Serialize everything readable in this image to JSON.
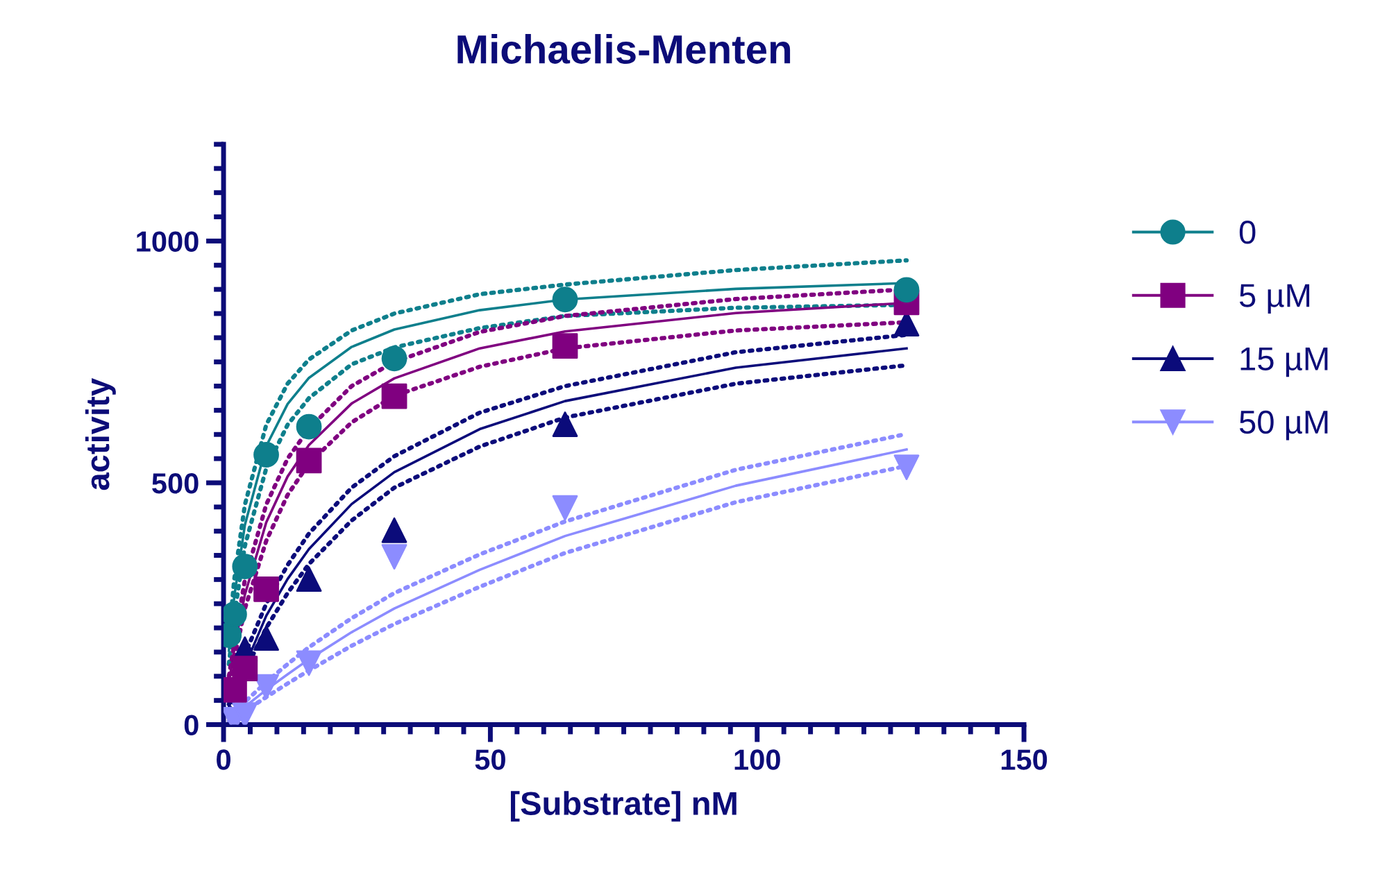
{
  "chart_data": {
    "type": "scatter",
    "title": "Michaelis-Menten",
    "xlabel": "[Substrate] nM",
    "ylabel": "activity",
    "xlim": [
      0,
      150
    ],
    "xticks": [
      0,
      50,
      100,
      150
    ],
    "ylim": [
      0,
      1200
    ],
    "yticks": [
      0,
      500,
      1000
    ],
    "grid": false,
    "legend": "right",
    "series": [
      {
        "name": "0",
        "marker": "circle",
        "color": "#0e7f8c",
        "x": [
          1,
          2,
          4,
          8,
          16,
          32,
          64,
          128
        ],
        "values": [
          185,
          228,
          327,
          558,
          616,
          757,
          879,
          899
        ]
      },
      {
        "name": "5 µM",
        "marker": "square",
        "color": "#800080",
        "x": [
          2,
          4,
          8,
          16,
          32,
          64,
          128
        ],
        "values": [
          72,
          116,
          280,
          546,
          679,
          783,
          873
        ]
      },
      {
        "name": "15 µM",
        "marker": "triangle",
        "color": "#0b0b7a",
        "x": [
          4,
          8,
          16,
          32,
          64,
          128
        ],
        "values": [
          156,
          179,
          301,
          402,
          621,
          829
        ]
      },
      {
        "name": "50 µM",
        "marker": "triangle_down",
        "color": "#8c8cff",
        "x": [
          2,
          4,
          8,
          16,
          32,
          64,
          128
        ],
        "values": [
          10,
          20,
          78,
          127,
          347,
          448,
          532
        ]
      },
      {
        "type": "line",
        "line_style": "solid",
        "color": "#0e7f8c",
        "x": [
          1,
          2,
          4,
          8,
          12,
          16,
          24,
          32,
          48,
          64,
          96,
          128
        ],
        "values": [
          153,
          264,
          413,
          576,
          663,
          717,
          781,
          817,
          857,
          879,
          901,
          913
        ]
      },
      {
        "type": "line",
        "line_style": "dotted",
        "color": "#0e7f8c",
        "x": [
          1,
          2,
          4,
          8,
          12,
          16,
          24,
          32,
          48,
          64,
          96,
          128
        ],
        "values": [
          180,
          300,
          455,
          620,
          705,
          755,
          815,
          850,
          890,
          910,
          940,
          960
        ]
      },
      {
        "type": "line",
        "line_style": "dotted",
        "color": "#0e7f8c",
        "x": [
          1,
          2,
          4,
          8,
          12,
          16,
          24,
          32,
          48,
          64,
          96,
          128
        ],
        "values": [
          125,
          225,
          370,
          530,
          620,
          675,
          745,
          780,
          820,
          845,
          862,
          868
        ]
      },
      {
        "type": "line",
        "line_style": "solid",
        "color": "#800080",
        "x": [
          1,
          2,
          4,
          8,
          12,
          16,
          24,
          32,
          48,
          64,
          96,
          128
        ],
        "values": [
          85,
          157,
          269,
          418,
          513,
          578,
          664,
          716,
          778,
          813,
          851,
          872
        ]
      },
      {
        "type": "line",
        "line_style": "dotted",
        "color": "#800080",
        "x": [
          1,
          4,
          8,
          12,
          16,
          24,
          32,
          48,
          64,
          96,
          128
        ],
        "values": [
          100,
          300,
          455,
          550,
          612,
          700,
          750,
          812,
          845,
          880,
          900
        ]
      },
      {
        "type": "line",
        "line_style": "dotted",
        "color": "#800080",
        "x": [
          1,
          2,
          4,
          8,
          12,
          16,
          24,
          32,
          48,
          64,
          96,
          128
        ],
        "values": [
          70,
          135,
          240,
          380,
          475,
          540,
          625,
          680,
          740,
          778,
          815,
          832
        ]
      },
      {
        "type": "line",
        "line_style": "solid",
        "color": "#0b0b7a",
        "x": [
          1,
          2,
          4,
          8,
          12,
          16,
          24,
          32,
          48,
          64,
          96,
          128
        ],
        "values": [
          36,
          69,
          null,
          225,
          301,
          363,
          456,
          522,
          611,
          669,
          738,
          778
        ]
      },
      {
        "type": "line",
        "line_style": "dotted",
        "color": "#0b0b7a",
        "x": [
          1,
          2,
          4,
          8,
          12,
          16,
          24,
          32,
          48,
          64,
          96,
          128
        ],
        "values": [
          42,
          80,
          145,
          250,
          330,
          395,
          490,
          555,
          645,
          700,
          770,
          806
        ]
      },
      {
        "type": "line",
        "line_style": "dotted",
        "color": "#0b0b7a",
        "x": [
          1,
          2,
          4,
          8,
          12,
          16,
          24,
          32,
          48,
          64,
          96,
          128
        ],
        "values": [
          30,
          null,
          110,
          200,
          272,
          332,
          422,
          490,
          575,
          635,
          705,
          743
        ]
      },
      {
        "type": "line",
        "line_style": "solid",
        "color": "#8c8cff",
        "x": [
          1,
          2,
          4,
          8,
          12,
          16,
          24,
          32,
          48,
          64,
          96,
          128
        ],
        "values": [
          10,
          19,
          37,
          72,
          104,
          135,
          191,
          240,
          320,
          390,
          494,
          569
        ]
      },
      {
        "type": "line",
        "line_style": "dotted",
        "color": "#8c8cff",
        "x": [
          1,
          2,
          4,
          8,
          12,
          16,
          24,
          32,
          48,
          64,
          96,
          128
        ],
        "values": [
          13,
          25,
          47,
          88,
          125,
          160,
          220,
          272,
          352,
          420,
          527,
          601
        ]
      },
      {
        "type": "line",
        "line_style": "dotted",
        "color": "#8c8cff",
        "x": [
          1,
          2,
          4,
          8,
          12,
          16,
          24,
          32,
          48,
          64,
          96,
          128
        ],
        "values": [
          7,
          14,
          28,
          57,
          85,
          112,
          163,
          208,
          285,
          355,
          460,
          535
        ]
      }
    ]
  }
}
